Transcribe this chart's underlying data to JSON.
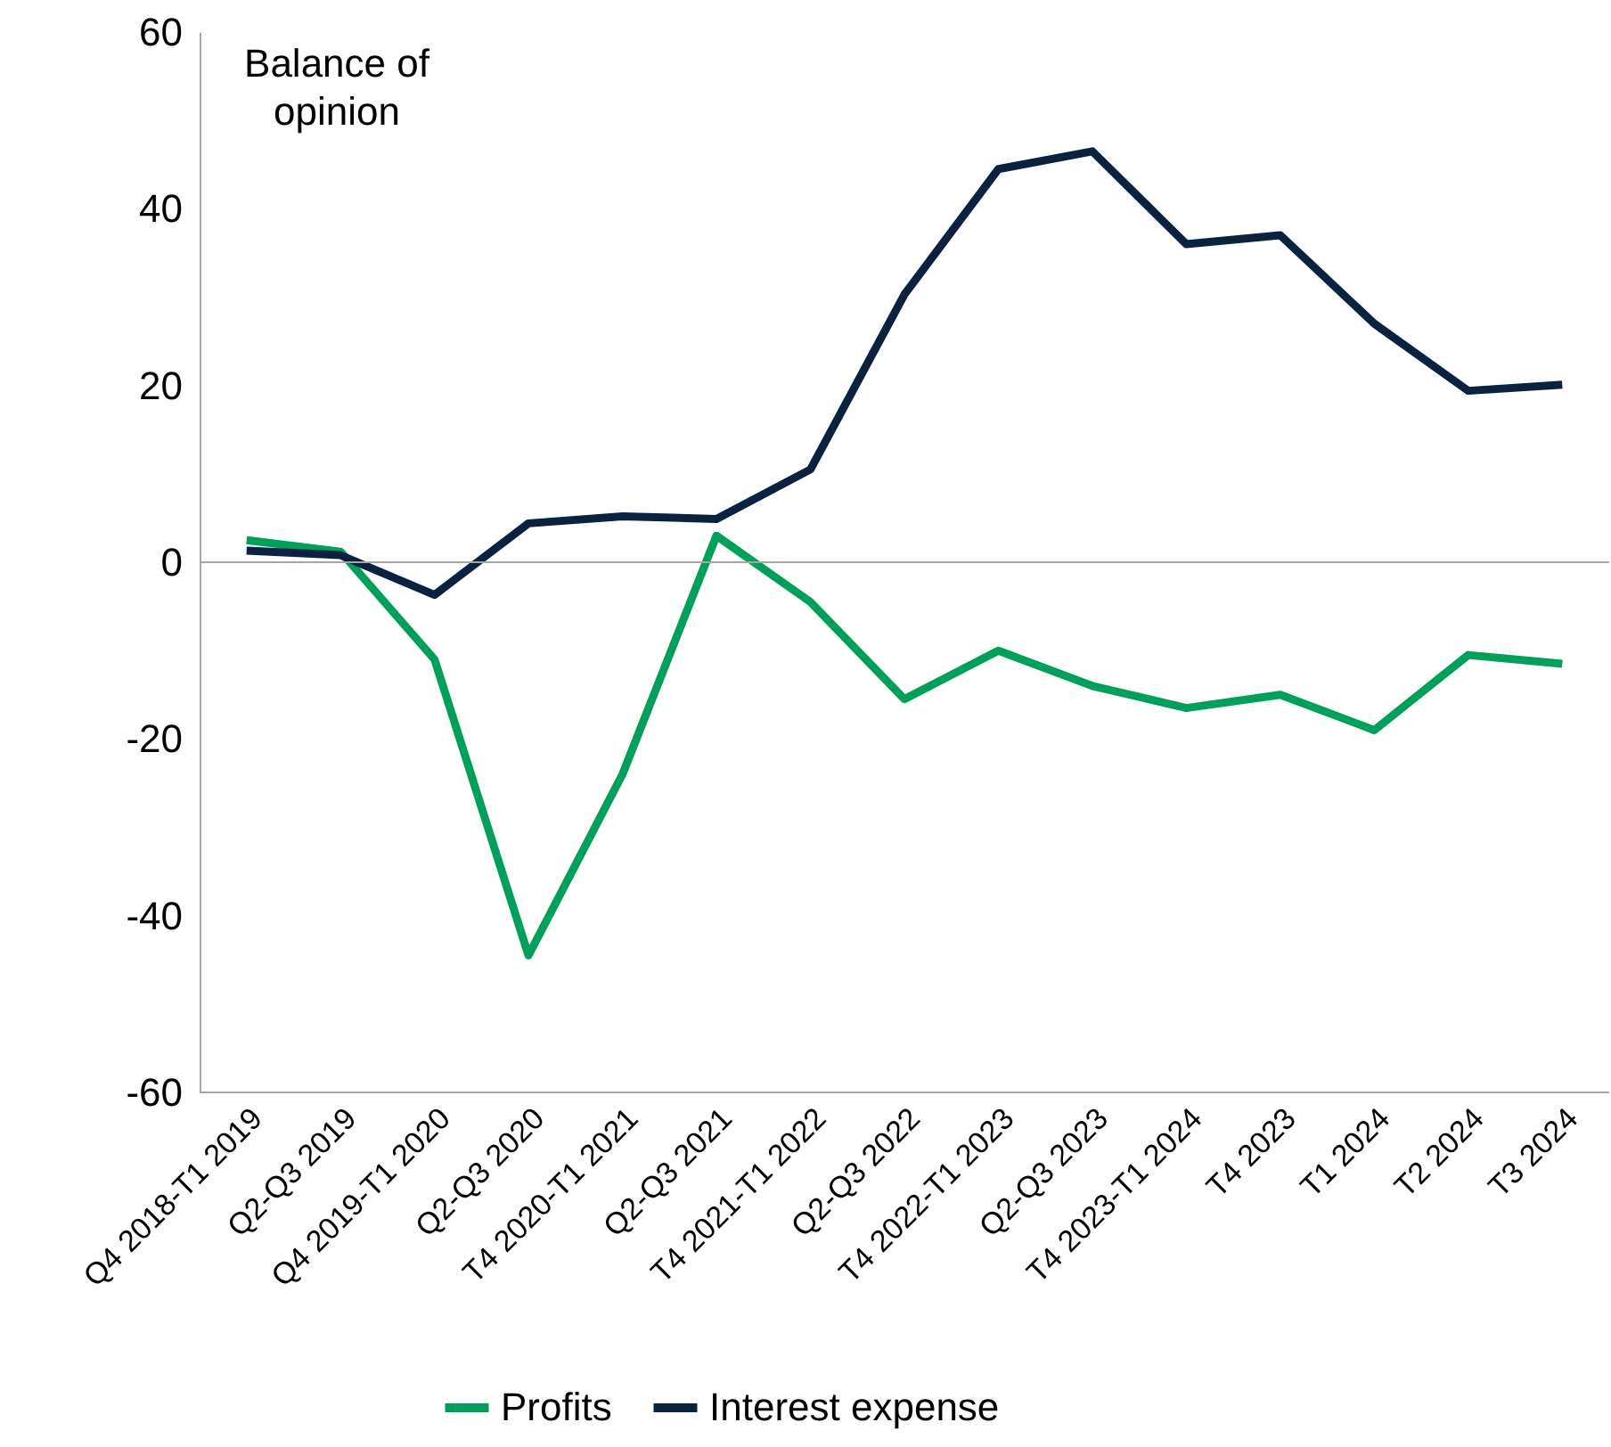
{
  "chart_data": {
    "type": "line",
    "annotations": [
      "Balance of opinion"
    ],
    "categories": [
      "Q4 2018-T1 2019",
      "Q2-Q3 2019",
      "Q4 2019-T1 2020",
      "Q2-Q3 2020",
      "T4 2020-T1 2021",
      "Q2-Q3 2021",
      "T4 2021-T1 2022",
      "Q2-Q3 2022",
      "T4 2022-T1 2023",
      "Q2-Q3 2023",
      "T4 2023-T1 2024",
      "T4 2023",
      "T1 2024",
      "T2 2024",
      "T3 2024"
    ],
    "series": [
      {
        "name": "Profits",
        "color": "#00a05a",
        "values": [
          2.5,
          1.2,
          -11,
          -44.5,
          -24,
          3,
          -4.5,
          -15.5,
          -10,
          -14,
          -16.5,
          -15,
          -19,
          -10.5,
          -11.5
        ]
      },
      {
        "name": "Interest expense",
        "color": "#0a2240",
        "values": [
          1.3,
          0.8,
          -3.7,
          4.4,
          5.2,
          4.9,
          10.5,
          30.3,
          44.5,
          46.5,
          36,
          37,
          27,
          19.4,
          20.1
        ]
      }
    ],
    "ylim": [
      -60,
      60
    ],
    "yticks": [
      -60,
      -40,
      -20,
      0,
      20,
      40,
      60
    ],
    "ref_lines": [
      {
        "axis": "y",
        "value": 0,
        "color": "#a6a6a6"
      }
    ],
    "legend": "bottom",
    "line_style": "solid"
  }
}
